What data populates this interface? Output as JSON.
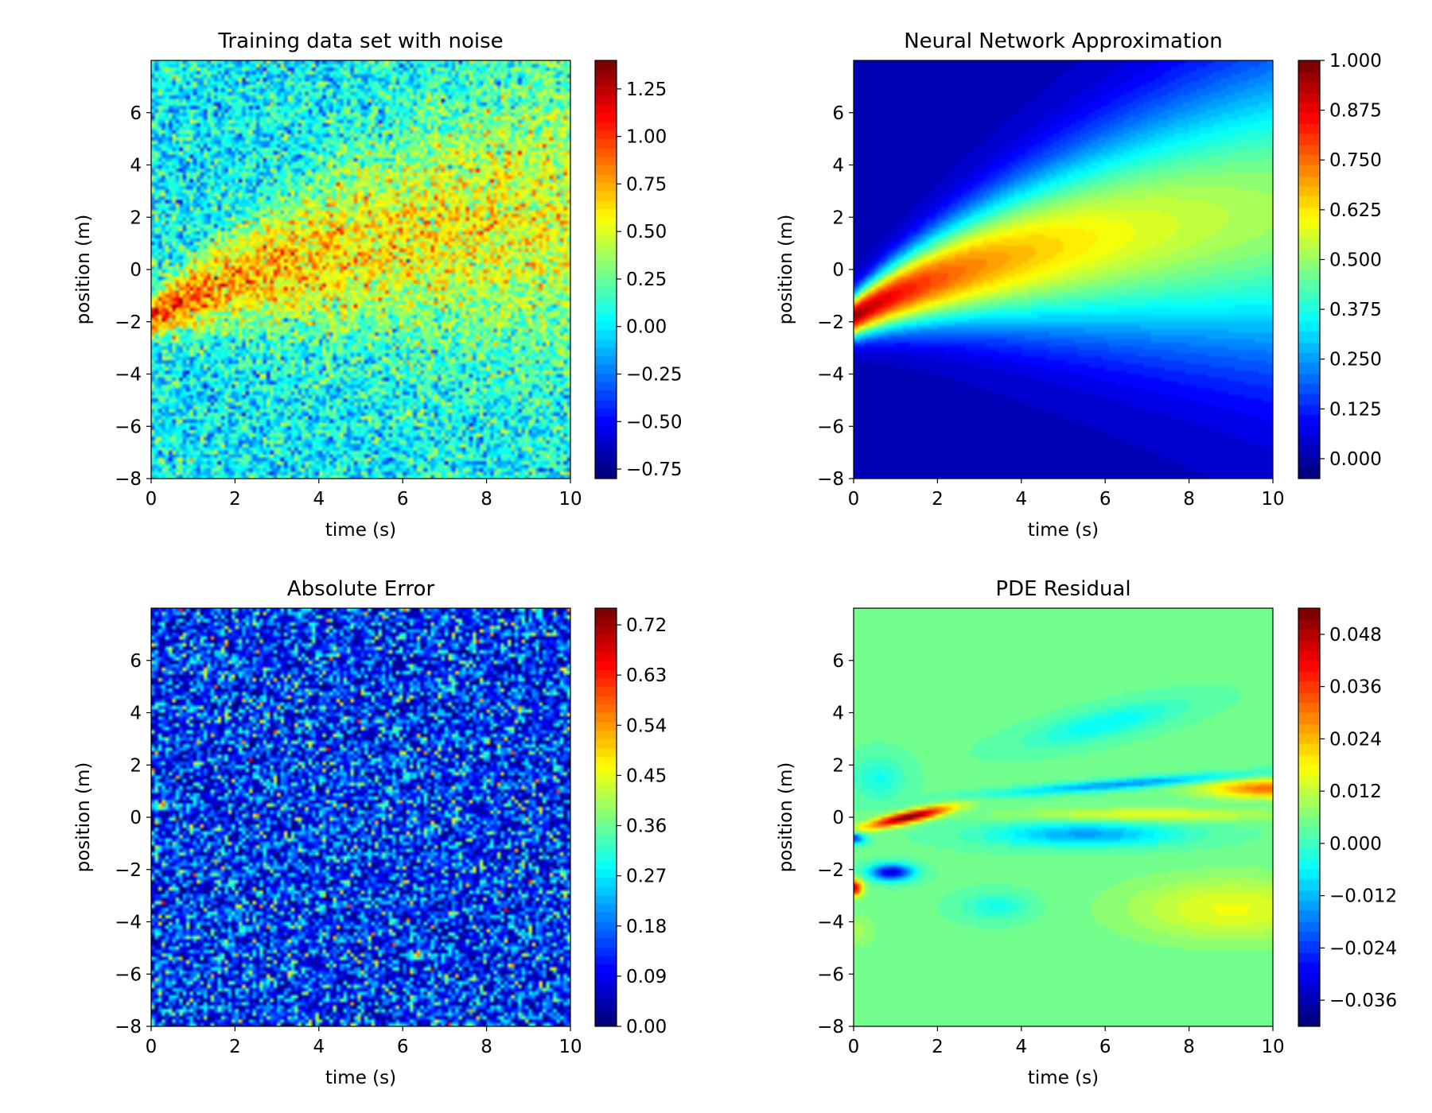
{
  "chart_data": [
    {
      "type": "heatmap",
      "title": "Training data set with noise",
      "xlabel": "time (s)",
      "ylabel": "position (m)",
      "xlim": [
        0,
        10
      ],
      "ylim": [
        -8,
        8
      ],
      "x_ticks": [
        "0",
        "2",
        "4",
        "6",
        "8",
        "10"
      ],
      "y_ticks": [
        "−8",
        "−6",
        "−4",
        "−2",
        "0",
        "2",
        "4",
        "6"
      ],
      "colormap": "jet",
      "color_range": [
        -0.8,
        1.4
      ],
      "colorbar_ticks": [
        "−0.75",
        "−0.50",
        "−0.25",
        "0.00",
        "0.25",
        "0.50",
        "0.75",
        "1.00",
        "1.25"
      ],
      "field": "noisy_data"
    },
    {
      "type": "heatmap",
      "title": "Neural Network Approximation",
      "xlabel": "time (s)",
      "ylabel": "position (m)",
      "xlim": [
        0,
        10
      ],
      "ylim": [
        -8,
        8
      ],
      "x_ticks": [
        "0",
        "2",
        "4",
        "6",
        "8",
        "10"
      ],
      "y_ticks": [
        "−8",
        "−6",
        "−4",
        "−2",
        "0",
        "2",
        "4",
        "6"
      ],
      "colormap": "jet",
      "color_range": [
        -0.05,
        1.0
      ],
      "colorbar_ticks": [
        "0.000",
        "0.125",
        "0.250",
        "0.375",
        "0.500",
        "0.625",
        "0.750",
        "0.875",
        "1.000"
      ],
      "field": "approximation"
    },
    {
      "type": "heatmap",
      "title": "Absolute Error",
      "xlabel": "time (s)",
      "ylabel": "position (m)",
      "xlim": [
        0,
        10
      ],
      "ylim": [
        -8,
        8
      ],
      "x_ticks": [
        "0",
        "2",
        "4",
        "6",
        "8",
        "10"
      ],
      "y_ticks": [
        "−8",
        "−6",
        "−4",
        "−2",
        "0",
        "2",
        "4",
        "6"
      ],
      "colormap": "jet",
      "color_range": [
        0.0,
        0.75
      ],
      "colorbar_ticks": [
        "0.00",
        "0.09",
        "0.18",
        "0.27",
        "0.36",
        "0.45",
        "0.54",
        "0.63",
        "0.72"
      ],
      "field": "abs_error"
    },
    {
      "type": "heatmap",
      "title": "PDE Residual",
      "xlabel": "time (s)",
      "ylabel": "position (m)",
      "xlim": [
        0,
        10
      ],
      "ylim": [
        -8,
        8
      ],
      "x_ticks": [
        "0",
        "2",
        "4",
        "6",
        "8",
        "10"
      ],
      "y_ticks": [
        "−8",
        "−6",
        "−4",
        "−2",
        "0",
        "2",
        "4",
        "6"
      ],
      "colormap": "jet",
      "color_range": [
        -0.042,
        0.054
      ],
      "colorbar_ticks": [
        "−0.036",
        "−0.024",
        "−0.012",
        "0.000",
        "0.012",
        "0.024",
        "0.036",
        "0.048"
      ],
      "field": "residual"
    }
  ]
}
